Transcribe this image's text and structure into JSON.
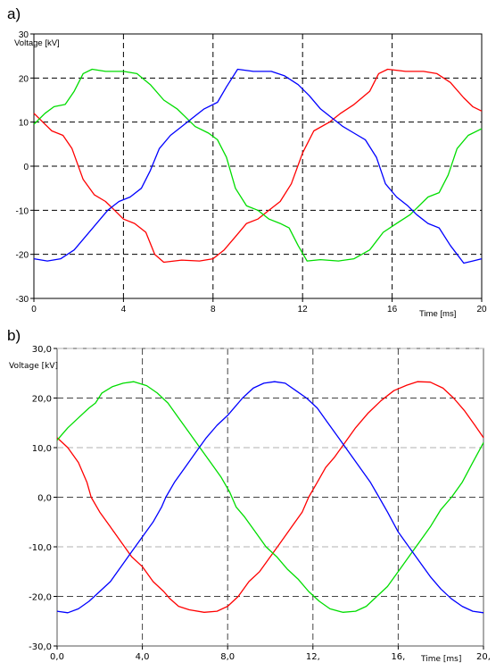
{
  "chart_data": [
    {
      "panel_label": "a)",
      "type": "line",
      "xlabel": "Time [ms]",
      "ylabel": "Voltage [kV]",
      "xlim": [
        0,
        20
      ],
      "ylim": [
        -30,
        30
      ],
      "x_ticks": [
        "0",
        "4",
        "8",
        "12",
        "16",
        "20"
      ],
      "y_ticks": [
        "30",
        "20",
        "10",
        "0",
        "-10",
        "-20",
        "-30"
      ],
      "grid": true,
      "series": [
        {
          "color": "#ff0000",
          "points": [
            [
              0,
              12
            ],
            [
              0.4,
              10
            ],
            [
              0.8,
              8
            ],
            [
              1.3,
              7
            ],
            [
              1.7,
              4
            ],
            [
              2.2,
              -3
            ],
            [
              2.7,
              -6.5
            ],
            [
              3.2,
              -8
            ],
            [
              3.6,
              -10
            ],
            [
              4.0,
              -12
            ],
            [
              4.5,
              -13
            ],
            [
              5.0,
              -15
            ],
            [
              5.4,
              -20
            ],
            [
              5.8,
              -21.8
            ],
            [
              6.6,
              -21.3
            ],
            [
              7.4,
              -21.5
            ],
            [
              8.0,
              -21
            ],
            [
              8.5,
              -19
            ],
            [
              9.0,
              -16
            ],
            [
              9.5,
              -13
            ],
            [
              10.0,
              -12
            ],
            [
              10.5,
              -10
            ],
            [
              11.0,
              -8
            ],
            [
              11.5,
              -4
            ],
            [
              12.0,
              3
            ],
            [
              12.5,
              8
            ],
            [
              13.2,
              10
            ],
            [
              13.7,
              12
            ],
            [
              14.3,
              14
            ],
            [
              15.0,
              17
            ],
            [
              15.4,
              21
            ],
            [
              15.8,
              22
            ],
            [
              16.6,
              21.5
            ],
            [
              17.4,
              21.5
            ],
            [
              18.0,
              21
            ],
            [
              18.6,
              19
            ],
            [
              19.2,
              15.5
            ],
            [
              19.6,
              13.5
            ],
            [
              20,
              12.5
            ]
          ]
        },
        {
          "color": "#00dd00",
          "points": [
            [
              0,
              9.5
            ],
            [
              0.5,
              12
            ],
            [
              0.9,
              13.5
            ],
            [
              1.4,
              14
            ],
            [
              1.8,
              17
            ],
            [
              2.2,
              21
            ],
            [
              2.6,
              22
            ],
            [
              3.2,
              21.5
            ],
            [
              4.0,
              21.5
            ],
            [
              4.6,
              21
            ],
            [
              5.2,
              18.5
            ],
            [
              5.8,
              15
            ],
            [
              6.4,
              13
            ],
            [
              6.8,
              11
            ],
            [
              7.2,
              9
            ],
            [
              7.8,
              7.5
            ],
            [
              8.2,
              6
            ],
            [
              8.6,
              2
            ],
            [
              9.0,
              -5
            ],
            [
              9.5,
              -9
            ],
            [
              10.0,
              -10
            ],
            [
              10.5,
              -12
            ],
            [
              11.0,
              -13
            ],
            [
              11.4,
              -14
            ],
            [
              11.8,
              -18
            ],
            [
              12.2,
              -21.5
            ],
            [
              12.8,
              -21.2
            ],
            [
              13.6,
              -21.5
            ],
            [
              14.3,
              -21
            ],
            [
              15.0,
              -19
            ],
            [
              15.6,
              -15
            ],
            [
              16.2,
              -13
            ],
            [
              16.8,
              -11
            ],
            [
              17.2,
              -9
            ],
            [
              17.6,
              -7
            ],
            [
              18.1,
              -6
            ],
            [
              18.5,
              -2
            ],
            [
              18.9,
              4
            ],
            [
              19.4,
              7
            ],
            [
              20,
              8.5
            ]
          ]
        },
        {
          "color": "#0000ff",
          "points": [
            [
              0,
              -21
            ],
            [
              0.6,
              -21.5
            ],
            [
              1.2,
              -21
            ],
            [
              1.8,
              -19
            ],
            [
              2.3,
              -16
            ],
            [
              2.8,
              -13
            ],
            [
              3.3,
              -10
            ],
            [
              3.8,
              -8
            ],
            [
              4.3,
              -7
            ],
            [
              4.8,
              -5
            ],
            [
              5.2,
              -1
            ],
            [
              5.6,
              4
            ],
            [
              6.1,
              7
            ],
            [
              6.6,
              9
            ],
            [
              7.1,
              11
            ],
            [
              7.6,
              13
            ],
            [
              8.2,
              14.5
            ],
            [
              8.6,
              18
            ],
            [
              9.1,
              22
            ],
            [
              9.8,
              21.5
            ],
            [
              10.6,
              21.5
            ],
            [
              11.2,
              20.5
            ],
            [
              11.8,
              18.5
            ],
            [
              12.3,
              16
            ],
            [
              12.8,
              13
            ],
            [
              13.3,
              11
            ],
            [
              13.8,
              9
            ],
            [
              14.3,
              7.5
            ],
            [
              14.8,
              6
            ],
            [
              15.3,
              2
            ],
            [
              15.7,
              -4
            ],
            [
              16.2,
              -7
            ],
            [
              16.7,
              -9
            ],
            [
              17.1,
              -11
            ],
            [
              17.6,
              -13
            ],
            [
              18.1,
              -14
            ],
            [
              18.6,
              -18
            ],
            [
              19.2,
              -22
            ],
            [
              19.6,
              -21.5
            ],
            [
              20,
              -21
            ]
          ]
        }
      ]
    },
    {
      "panel_label": "b)",
      "type": "line",
      "xlabel": "Time [ms]",
      "ylabel": "Voltage [kV]",
      "xlim": [
        0,
        20
      ],
      "ylim": [
        -30,
        30
      ],
      "x_ticks": [
        "0,0",
        "4,0",
        "8,0",
        "12,",
        "16,",
        "20,"
      ],
      "y_ticks": [
        "30,0",
        "20,0",
        "10,0",
        "0,0",
        "-10,0",
        "-20,0",
        "-30,0"
      ],
      "grid": true,
      "series": [
        {
          "color": "#ff0000",
          "points": [
            [
              0,
              12
            ],
            [
              0.5,
              10
            ],
            [
              1.0,
              7
            ],
            [
              1.4,
              3
            ],
            [
              1.6,
              0
            ],
            [
              2.0,
              -3
            ],
            [
              2.5,
              -6
            ],
            [
              3.0,
              -9
            ],
            [
              3.5,
              -12
            ],
            [
              4.0,
              -14
            ],
            [
              4.5,
              -17
            ],
            [
              5.0,
              -19
            ],
            [
              5.3,
              -20.5
            ],
            [
              5.7,
              -22
            ],
            [
              6.2,
              -22.7
            ],
            [
              6.9,
              -23.2
            ],
            [
              7.5,
              -23
            ],
            [
              8.0,
              -22
            ],
            [
              8.5,
              -20
            ],
            [
              9.0,
              -17
            ],
            [
              9.5,
              -15
            ],
            [
              10.0,
              -12
            ],
            [
              10.5,
              -9
            ],
            [
              11.0,
              -6
            ],
            [
              11.5,
              -3
            ],
            [
              11.8,
              0
            ],
            [
              12.2,
              3
            ],
            [
              12.6,
              6
            ],
            [
              13.0,
              8
            ],
            [
              13.5,
              11
            ],
            [
              14.0,
              14
            ],
            [
              14.6,
              17
            ],
            [
              15.2,
              19.5
            ],
            [
              15.8,
              21.5
            ],
            [
              16.4,
              22.6
            ],
            [
              16.9,
              23.3
            ],
            [
              17.5,
              23.2
            ],
            [
              18.1,
              22
            ],
            [
              18.6,
              20
            ],
            [
              19.1,
              17.5
            ],
            [
              19.6,
              14.5
            ],
            [
              20,
              12
            ]
          ]
        },
        {
          "color": "#00dd00",
          "points": [
            [
              0,
              11.5
            ],
            [
              0.5,
              14
            ],
            [
              1.0,
              16
            ],
            [
              1.5,
              18
            ],
            [
              1.8,
              19
            ],
            [
              2.1,
              21
            ],
            [
              2.6,
              22.3
            ],
            [
              3.1,
              23
            ],
            [
              3.6,
              23.3
            ],
            [
              4.2,
              22.5
            ],
            [
              4.7,
              21
            ],
            [
              5.2,
              19
            ],
            [
              5.7,
              16
            ],
            [
              6.2,
              13
            ],
            [
              6.7,
              10
            ],
            [
              7.2,
              7
            ],
            [
              7.7,
              4
            ],
            [
              8.1,
              1
            ],
            [
              8.4,
              -2
            ],
            [
              8.8,
              -4
            ],
            [
              9.3,
              -7
            ],
            [
              9.8,
              -10
            ],
            [
              10.3,
              -12
            ],
            [
              10.8,
              -14.5
            ],
            [
              11.3,
              -16.5
            ],
            [
              11.8,
              -19
            ],
            [
              12.3,
              -21
            ],
            [
              12.8,
              -22.5
            ],
            [
              13.4,
              -23.2
            ],
            [
              14.0,
              -23
            ],
            [
              14.5,
              -22
            ],
            [
              15.0,
              -20
            ],
            [
              15.5,
              -18
            ],
            [
              16.0,
              -15
            ],
            [
              16.5,
              -12
            ],
            [
              17.0,
              -9
            ],
            [
              17.5,
              -6
            ],
            [
              18.0,
              -2.5
            ],
            [
              18.5,
              0
            ],
            [
              19.0,
              3
            ],
            [
              19.5,
              7
            ],
            [
              20,
              11
            ]
          ]
        },
        {
          "color": "#0000ff",
          "points": [
            [
              0,
              -23
            ],
            [
              0.5,
              -23.3
            ],
            [
              1.0,
              -22.5
            ],
            [
              1.5,
              -21
            ],
            [
              2.0,
              -19
            ],
            [
              2.5,
              -17
            ],
            [
              3.0,
              -14
            ],
            [
              3.5,
              -11
            ],
            [
              4.0,
              -8
            ],
            [
              4.5,
              -5
            ],
            [
              4.9,
              -2
            ],
            [
              5.1,
              0
            ],
            [
              5.5,
              3
            ],
            [
              6.0,
              6
            ],
            [
              6.5,
              9
            ],
            [
              7.0,
              12
            ],
            [
              7.5,
              14.5
            ],
            [
              8.0,
              16.5
            ],
            [
              8.3,
              18
            ],
            [
              8.7,
              20
            ],
            [
              9.2,
              22
            ],
            [
              9.7,
              23
            ],
            [
              10.2,
              23.3
            ],
            [
              10.7,
              23
            ],
            [
              11.2,
              21.5
            ],
            [
              11.7,
              20
            ],
            [
              12.2,
              18
            ],
            [
              12.7,
              15
            ],
            [
              13.2,
              12
            ],
            [
              13.7,
              9
            ],
            [
              14.2,
              6
            ],
            [
              14.7,
              3
            ],
            [
              15.1,
              0
            ],
            [
              15.5,
              -3
            ],
            [
              16.0,
              -7
            ],
            [
              16.5,
              -10
            ],
            [
              17.0,
              -13
            ],
            [
              17.5,
              -16
            ],
            [
              18.0,
              -18.5
            ],
            [
              18.5,
              -20.5
            ],
            [
              19.0,
              -22
            ],
            [
              19.5,
              -23
            ],
            [
              20,
              -23.3
            ]
          ]
        }
      ]
    }
  ]
}
